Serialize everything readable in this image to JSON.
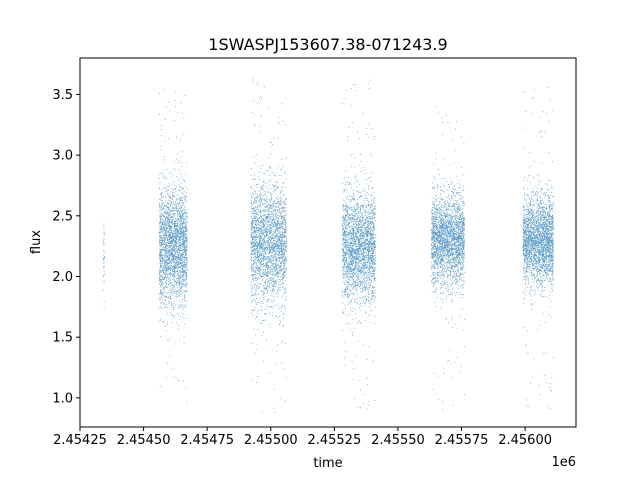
{
  "chart_data": {
    "type": "scatter",
    "title": "1SWASPJ153607.38-071243.9",
    "xlabel": "time",
    "ylabel": "flux",
    "x_offset_label": "1e6",
    "xlim": [
      2454250,
      2456200
    ],
    "ylim": [
      0.76,
      3.8
    ],
    "xticks": [
      2454250,
      2454500,
      2454750,
      2455000,
      2455250,
      2455500,
      2455750,
      2456000
    ],
    "xtick_labels": [
      "2.45425",
      "2.45450",
      "2.45475",
      "2.45500",
      "2.45525",
      "2.45550",
      "2.45575",
      "2.45600"
    ],
    "yticks": [
      1.0,
      1.5,
      2.0,
      2.5,
      3.0,
      3.5
    ],
    "ytick_labels": [
      "1.0",
      "1.5",
      "2.0",
      "2.5",
      "3.0",
      "3.5"
    ],
    "grid": false,
    "marker_color": "#1f77b4",
    "seasons": [
      {
        "x_start": 2454340,
        "x_end": 2454345,
        "y_median": 2.2,
        "y_spread": 0.22,
        "y_min": 1.65,
        "y_max": 2.55
      },
      {
        "x_start": 2454560,
        "x_end": 2454670,
        "y_median": 2.25,
        "y_spread": 0.24,
        "y_min": 0.93,
        "y_max": 3.6
      },
      {
        "x_start": 2454920,
        "x_end": 2455060,
        "y_median": 2.28,
        "y_spread": 0.24,
        "y_min": 0.88,
        "y_max": 3.66
      },
      {
        "x_start": 2455280,
        "x_end": 2455410,
        "y_median": 2.25,
        "y_spread": 0.22,
        "y_min": 0.9,
        "y_max": 3.68
      },
      {
        "x_start": 2455630,
        "x_end": 2455760,
        "y_median": 2.3,
        "y_spread": 0.18,
        "y_min": 0.9,
        "y_max": 3.42
      },
      {
        "x_start": 2455990,
        "x_end": 2456110,
        "y_median": 2.3,
        "y_spread": 0.18,
        "y_min": 0.88,
        "y_max": 3.62
      }
    ]
  }
}
